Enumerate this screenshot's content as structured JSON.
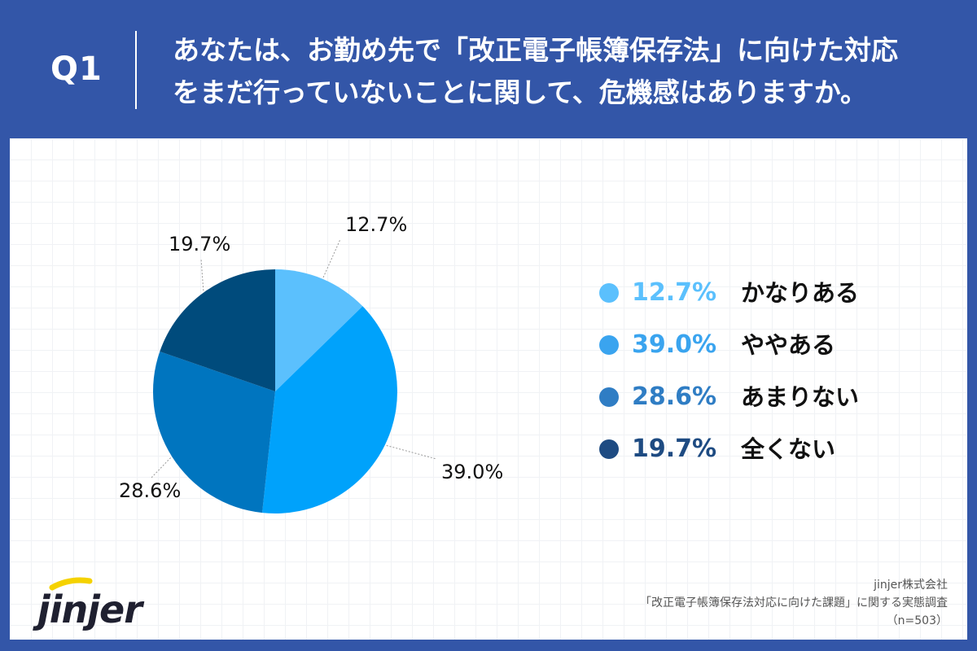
{
  "header": {
    "q_label": "Q1",
    "question_line1": "あなたは、お勤め先で「改正電子帳簿保存法」に向けた対応",
    "question_line2": "をまだ行っていないことに関して、危機感はありますか。"
  },
  "chart_data": {
    "type": "pie",
    "title": "",
    "slices": [
      {
        "label": "かなりある",
        "value": 12.7,
        "display": "12.7%",
        "color": "#5bc0fd"
      },
      {
        "label": "ややある",
        "value": 39.0,
        "display": "39.0%",
        "color": "#00a2fb"
      },
      {
        "label": "あまりない",
        "value": 28.6,
        "display": "28.6%",
        "color": "#0075bf"
      },
      {
        "label": "全くない",
        "value": 19.7,
        "display": "19.7%",
        "color": "#004b7c"
      }
    ],
    "legend_position": "right"
  },
  "legend_colors": [
    "#5bc0fd",
    "#3aa4ef",
    "#2f7dc4",
    "#1e4b82"
  ],
  "logo": {
    "text": "jinjer",
    "accent_color": "#f5d200"
  },
  "credit": {
    "company": "jinjer株式会社",
    "survey": "「改正電子帳簿保存法対応に向けた課題」に関する実態調査",
    "sample": "（n=503）"
  }
}
